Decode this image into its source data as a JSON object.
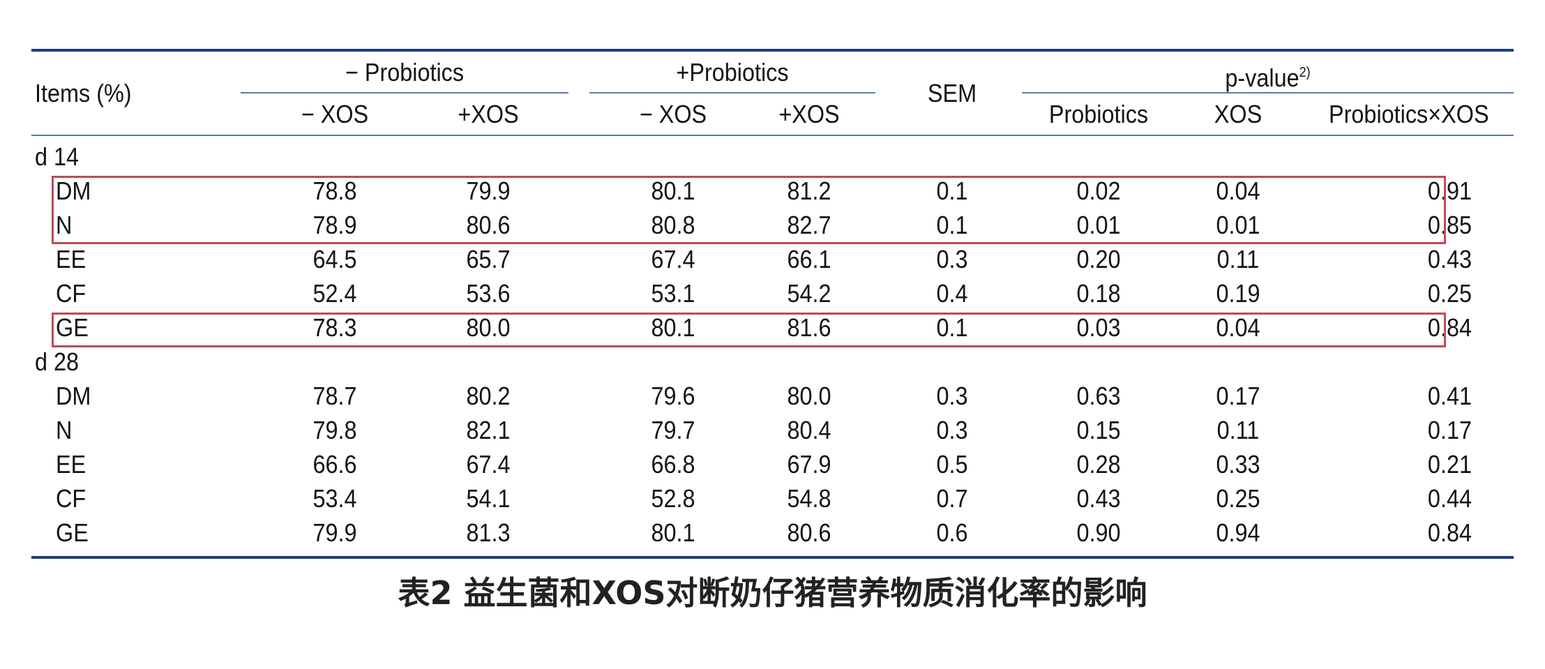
{
  "table": {
    "header": {
      "items": "Items (%)",
      "group_minus": "− Probiotics",
      "group_plus": "+Probiotics",
      "sem": "SEM",
      "pvalue": "p-value",
      "pvalue_note": "2)",
      "sub_minus_xos_1": "− XOS",
      "sub_plus_xos_1": "+XOS",
      "sub_minus_xos_2": "− XOS",
      "sub_plus_xos_2": "+XOS",
      "p_probiotics": "Probiotics",
      "p_xos": "XOS",
      "p_interaction": "Probiotics×XOS"
    },
    "sections": [
      {
        "label": "d 14",
        "rows": [
          {
            "item": "DM",
            "v1": "78.8",
            "v2": "79.9",
            "v3": "80.1",
            "v4": "81.2",
            "sem": "0.1",
            "pp": "0.02",
            "px": "0.04",
            "pi": "0.91"
          },
          {
            "item": "N",
            "v1": "78.9",
            "v2": "80.6",
            "v3": "80.8",
            "v4": "82.7",
            "sem": "0.1",
            "pp": "0.01",
            "px": "0.01",
            "pi": "0.85"
          },
          {
            "item": "EE",
            "v1": "64.5",
            "v2": "65.7",
            "v3": "67.4",
            "v4": "66.1",
            "sem": "0.3",
            "pp": "0.20",
            "px": "0.11",
            "pi": "0.43"
          },
          {
            "item": "CF",
            "v1": "52.4",
            "v2": "53.6",
            "v3": "53.1",
            "v4": "54.2",
            "sem": "0.4",
            "pp": "0.18",
            "px": "0.19",
            "pi": "0.25"
          },
          {
            "item": "GE",
            "v1": "78.3",
            "v2": "80.0",
            "v3": "80.1",
            "v4": "81.6",
            "sem": "0.1",
            "pp": "0.03",
            "px": "0.04",
            "pi": "0.84"
          }
        ]
      },
      {
        "label": "d 28",
        "rows": [
          {
            "item": "DM",
            "v1": "78.7",
            "v2": "80.2",
            "v3": "79.6",
            "v4": "80.0",
            "sem": "0.3",
            "pp": "0.63",
            "px": "0.17",
            "pi": "0.41"
          },
          {
            "item": "N",
            "v1": "79.8",
            "v2": "82.1",
            "v3": "79.7",
            "v4": "80.4",
            "sem": "0.3",
            "pp": "0.15",
            "px": "0.11",
            "pi": "0.17"
          },
          {
            "item": "EE",
            "v1": "66.6",
            "v2": "67.4",
            "v3": "66.8",
            "v4": "67.9",
            "sem": "0.5",
            "pp": "0.28",
            "px": "0.33",
            "pi": "0.21"
          },
          {
            "item": "CF",
            "v1": "53.4",
            "v2": "54.1",
            "v3": "52.8",
            "v4": "54.8",
            "sem": "0.7",
            "pp": "0.43",
            "px": "0.25",
            "pi": "0.44"
          },
          {
            "item": "GE",
            "v1": "79.9",
            "v2": "81.3",
            "v3": "80.1",
            "v4": "80.6",
            "sem": "0.6",
            "pp": "0.90",
            "px": "0.94",
            "pi": "0.84"
          }
        ]
      }
    ]
  },
  "caption": "表2  益生菌和XOS对断奶仔猪营养物质消化率的影响",
  "colors": {
    "rule": "#1f3d7a",
    "highlight": "#c04a55"
  }
}
